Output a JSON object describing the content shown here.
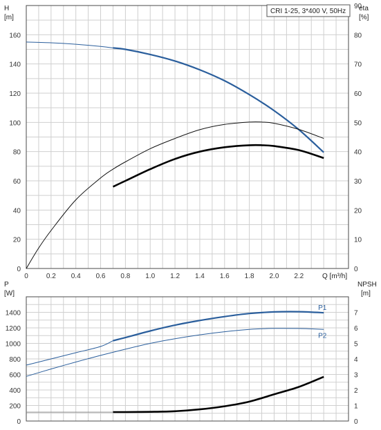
{
  "chart_data": [
    {
      "type": "line",
      "title": "CRI 1-25, 3*400 V, 50Hz",
      "xlabel": "Q [m³/h]",
      "xlim": [
        0,
        2.6
      ],
      "x_ticks": [
        "0",
        "0.2",
        "0.4",
        "0.6",
        "0.8",
        "1.0",
        "1.2",
        "1.4",
        "1.6",
        "1.8",
        "2.0",
        "2.2"
      ],
      "y_left": {
        "label_line1": "H",
        "label_line2": "[m]",
        "ylim": [
          0,
          180
        ],
        "ticks": [
          "0",
          "20",
          "40",
          "60",
          "80",
          "100",
          "120",
          "140",
          "160"
        ]
      },
      "y_right": {
        "label_line1": "eta",
        "label_line2": "[%]",
        "ylim": [
          0,
          90
        ],
        "ticks": [
          "0",
          "10",
          "20",
          "30",
          "40",
          "50",
          "60",
          "70",
          "80",
          "90"
        ]
      },
      "grid": true,
      "series": [
        {
          "axis": "left",
          "color": "#2a5e9c",
          "x": [
            0,
            0.2,
            0.4,
            0.6,
            0.7,
            0.8,
            1.0,
            1.2,
            1.4,
            1.6,
            1.8,
            2.0,
            2.2,
            2.4
          ],
          "values": [
            155,
            154.5,
            153.5,
            152,
            151,
            150,
            146.5,
            142,
            136,
            128.5,
            119,
            108,
            95,
            79.5
          ],
          "bold_from": 0.7
        },
        {
          "axis": "right",
          "color": "#111111",
          "x": [
            0,
            0.1,
            0.2,
            0.4,
            0.6,
            0.7,
            0.8,
            1.0,
            1.2,
            1.4,
            1.6,
            1.8,
            1.9,
            2.0,
            2.2,
            2.4
          ],
          "values": [
            0,
            7,
            13,
            23.5,
            31,
            34,
            36.5,
            41,
            44.5,
            47.5,
            49.3,
            50.1,
            50.1,
            49.7,
            47.6,
            44.5
          ]
        },
        {
          "axis": "right",
          "color": "#000000",
          "x": [
            0.7,
            0.8,
            1.0,
            1.2,
            1.4,
            1.6,
            1.8,
            1.9,
            2.0,
            2.2,
            2.4
          ],
          "values": [
            28,
            30,
            34,
            37.5,
            40,
            41.5,
            42.2,
            42.2,
            41.9,
            40.5,
            37.8
          ]
        }
      ]
    },
    {
      "type": "line",
      "xlim": [
        0,
        2.6
      ],
      "y_left": {
        "label_line1": "P",
        "label_line2": "[W]",
        "ylim": [
          0,
          1600
        ],
        "ticks": [
          "0",
          "200",
          "400",
          "600",
          "800",
          "1000",
          "1200",
          "1400"
        ]
      },
      "y_right": {
        "label_line1": "NPSH",
        "label_line2": "[m]",
        "ylim": [
          0,
          8
        ],
        "ticks": [
          "0",
          "1",
          "2",
          "3",
          "4",
          "5",
          "6",
          "7"
        ]
      },
      "grid": true,
      "series": [
        {
          "name": "P1",
          "axis": "left",
          "color": "#2a5e9c",
          "x": [
            0,
            0.2,
            0.4,
            0.6,
            0.7,
            0.8,
            1.0,
            1.2,
            1.4,
            1.6,
            1.8,
            2.0,
            2.2,
            2.4
          ],
          "values": [
            720,
            800,
            880,
            960,
            1035,
            1075,
            1160,
            1235,
            1295,
            1345,
            1385,
            1405,
            1408,
            1395
          ],
          "bold_from": 0.7
        },
        {
          "name": "P2",
          "axis": "left",
          "color": "#2a5e9c",
          "x": [
            0,
            0.2,
            0.4,
            0.6,
            0.8,
            1.0,
            1.2,
            1.4,
            1.6,
            1.8,
            2.0,
            2.2,
            2.4
          ],
          "values": [
            575,
            670,
            760,
            845,
            925,
            1000,
            1060,
            1110,
            1150,
            1180,
            1193,
            1192,
            1180
          ]
        },
        {
          "axis": "right",
          "color": "#000000",
          "x": [
            0.7,
            0.8,
            1.0,
            1.2,
            1.4,
            1.6,
            1.8,
            2.0,
            2.2,
            2.4
          ],
          "values": [
            0.58,
            0.58,
            0.59,
            0.63,
            0.75,
            0.95,
            1.25,
            1.72,
            2.2,
            2.85
          ]
        },
        {
          "axis": "left",
          "color": "#888888",
          "x": [
            0,
            0.7
          ],
          "values": [
            115,
            115
          ]
        }
      ]
    }
  ]
}
